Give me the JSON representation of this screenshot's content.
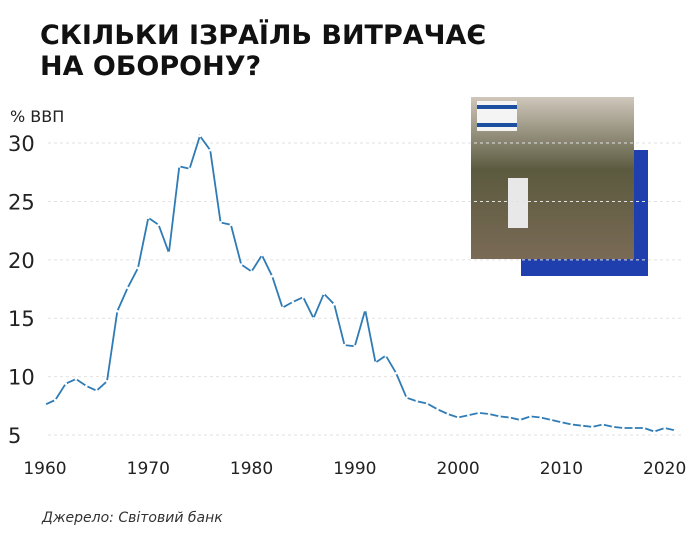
{
  "chart_data": {
    "type": "line",
    "title": [
      "СКІЛЬКИ ІЗРАЇЛЬ ВИТРАЧАЄ",
      "НА ОБОРОНУ?"
    ],
    "y_label": "% ВВП",
    "source": "Джерело: Світовий банк",
    "x": [
      1960,
      1961,
      1962,
      1963,
      1964,
      1965,
      1966,
      1967,
      1968,
      1969,
      1970,
      1971,
      1972,
      1973,
      1974,
      1975,
      1976,
      1977,
      1978,
      1979,
      1980,
      1981,
      1982,
      1983,
      1984,
      1985,
      1986,
      1987,
      1988,
      1989,
      1990,
      1991,
      1992,
      1993,
      1994,
      1995,
      1996,
      1997,
      1998,
      1999,
      2000,
      2001,
      2002,
      2003,
      2004,
      2005,
      2006,
      2007,
      2008,
      2009,
      2010,
      2011,
      2012,
      2013,
      2014,
      2015,
      2016,
      2017,
      2018,
      2019,
      2020,
      2021
    ],
    "series": [
      {
        "name": "Israel",
        "color": "#2e7bb5",
        "values": [
          7.6,
          8.0,
          9.4,
          9.8,
          9.2,
          8.8,
          9.6,
          15.6,
          17.6,
          19.3,
          23.6,
          23.0,
          20.6,
          28.0,
          27.8,
          30.6,
          29.4,
          23.2,
          23.0,
          19.6,
          19.0,
          20.4,
          18.6,
          15.9,
          16.4,
          16.8,
          15.0,
          17.1,
          16.2,
          12.7,
          12.6,
          15.7,
          11.2,
          11.8,
          10.3,
          8.2,
          7.9,
          7.7,
          7.2,
          6.8,
          6.5,
          6.7,
          6.9,
          6.8,
          6.6,
          6.5,
          6.3,
          6.6,
          6.5,
          6.3,
          6.1,
          5.9,
          5.8,
          5.7,
          5.9,
          5.7,
          5.6,
          5.6,
          5.6,
          5.3,
          5.6,
          5.4
        ]
      }
    ],
    "xlim": [
      1960,
      2021
    ],
    "xticks": [
      1960,
      1970,
      1980,
      1990,
      2000,
      2010,
      2020
    ],
    "ylim": [
      3.3,
      31.1
    ],
    "yticks": [
      5,
      10,
      15,
      20,
      25,
      30
    ],
    "grid": true
  }
}
